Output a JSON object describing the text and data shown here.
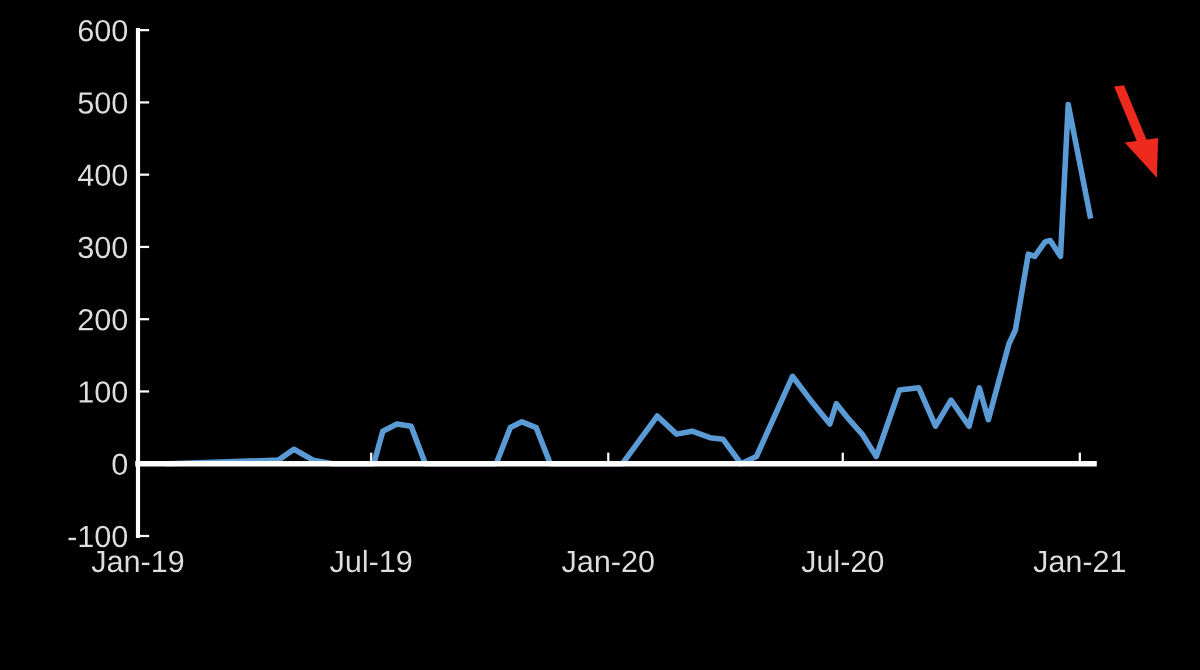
{
  "chart_data": {
    "type": "line",
    "x": [
      "2019-01-25",
      "2019-04-20",
      "2019-05-02",
      "2019-05-17",
      "2019-06-01",
      "2019-07-03",
      "2019-07-10",
      "2019-07-21",
      "2019-08-01",
      "2019-08-12",
      "2019-10-06",
      "2019-10-17",
      "2019-10-26",
      "2019-11-06",
      "2019-11-17",
      "2020-01-12",
      "2020-02-08",
      "2020-02-23",
      "2020-03-06",
      "2020-03-20",
      "2020-03-30",
      "2020-04-13",
      "2020-04-25",
      "2020-05-23",
      "2020-06-06",
      "2020-06-21",
      "2020-06-26",
      "2020-07-06",
      "2020-07-16",
      "2020-07-27",
      "2020-08-14",
      "2020-08-29",
      "2020-09-11",
      "2020-09-23",
      "2020-10-07",
      "2020-10-15",
      "2020-10-22",
      "2020-11-07",
      "2020-11-12",
      "2020-11-22",
      "2020-11-27",
      "2020-12-05",
      "2020-12-09",
      "2020-12-17",
      "2020-12-23",
      "2021-01-09"
    ],
    "series": [
      {
        "color": "#5b9bd5",
        "values": [
          0,
          5,
          20,
          5,
          0,
          0,
          45,
          55,
          52,
          0,
          0,
          50,
          58,
          50,
          0,
          0,
          66,
          41,
          45,
          36,
          34,
          0,
          10,
          121,
          88,
          55,
          83,
          61,
          41,
          10,
          102,
          105,
          52,
          88,
          52,
          105,
          61,
          166,
          185,
          290,
          287,
          307,
          309,
          287,
          497,
          343
        ]
      }
    ],
    "xlim": [
      "2019-01-01",
      "2021-01-12"
    ],
    "xticks": [
      {
        "value": "2019-01-01",
        "label": "Jan-19"
      },
      {
        "value": "2019-07-01",
        "label": "Jul-19"
      },
      {
        "value": "2020-01-01",
        "label": "Jan-20"
      },
      {
        "value": "2020-07-01",
        "label": "Jul-20"
      },
      {
        "value": "2021-01-01",
        "label": "Jan-21"
      }
    ],
    "ylim": [
      -100,
      600
    ],
    "yticks": [
      -100,
      0,
      100,
      200,
      300,
      400,
      500,
      600
    ],
    "marker": "none",
    "line_style": "solid"
  }
}
